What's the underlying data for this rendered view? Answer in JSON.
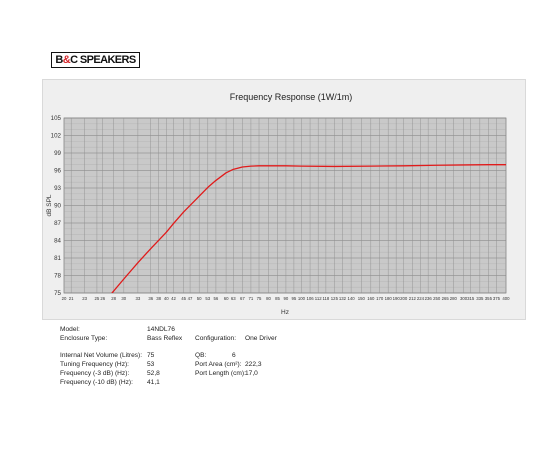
{
  "logo": {
    "text_a": "B",
    "text_amp": "&",
    "text_b": "C SPEAKERS"
  },
  "chart_data": {
    "type": "line",
    "title": "Frequency Response (1W/1m)",
    "xlabel": "Hz",
    "ylabel": "dB SPL",
    "x_scale": "log",
    "ylim": [
      75,
      105
    ],
    "y_ticks": [
      75,
      78,
      81,
      84,
      87,
      90,
      93,
      96,
      99,
      102,
      105
    ],
    "x_ticks": [
      20,
      21,
      23,
      25,
      26,
      28,
      30,
      33,
      36,
      38,
      40,
      42,
      45,
      47,
      50,
      53,
      56,
      60,
      63,
      67,
      71,
      75,
      80,
      85,
      90,
      95,
      100,
      106,
      112,
      118,
      125,
      132,
      140,
      150,
      160,
      170,
      180,
      190,
      200,
      212,
      224,
      236,
      250,
      265,
      280,
      300,
      315,
      335,
      355,
      375,
      400
    ],
    "grid": true,
    "series": [
      {
        "color": "#e01b1b",
        "x": [
          27.5,
          30,
          33,
          36,
          40,
          42,
          45,
          50,
          53,
          56,
          60,
          63,
          67,
          71,
          75,
          80,
          90,
          100,
          125,
          160,
          200,
          250,
          300,
          355,
          400
        ],
        "y": [
          74.8,
          77.4,
          80.2,
          82.6,
          85.4,
          86.9,
          88.9,
          91.6,
          93.1,
          94.3,
          95.6,
          96.2,
          96.6,
          96.75,
          96.8,
          96.8,
          96.8,
          96.75,
          96.7,
          96.75,
          96.8,
          96.9,
          96.95,
          97.0,
          97.0
        ]
      }
    ]
  },
  "specs": {
    "left": [
      {
        "label": "Model:",
        "value": "14NDL76"
      },
      {
        "label": "Enclosure Type:",
        "value": "Bass Reflex"
      },
      {
        "label": "Internal Net Volume (Litres):",
        "value": "75"
      },
      {
        "label": "Tuning Frequency (Hz):",
        "value": "53"
      },
      {
        "label": "Frequency (-3 dB) (Hz):",
        "value": "52,8"
      },
      {
        "label": "Frequency (-10 dB) (Hz):",
        "value": "41,1"
      }
    ],
    "right": [
      {
        "label": "Configuration:",
        "value": "One Driver"
      },
      {
        "label": "QB:",
        "value": "6"
      },
      {
        "label": "Port Area (cm²):",
        "value": "222,3"
      },
      {
        "label": "Port Length (cm):",
        "value": "17,0"
      }
    ]
  }
}
